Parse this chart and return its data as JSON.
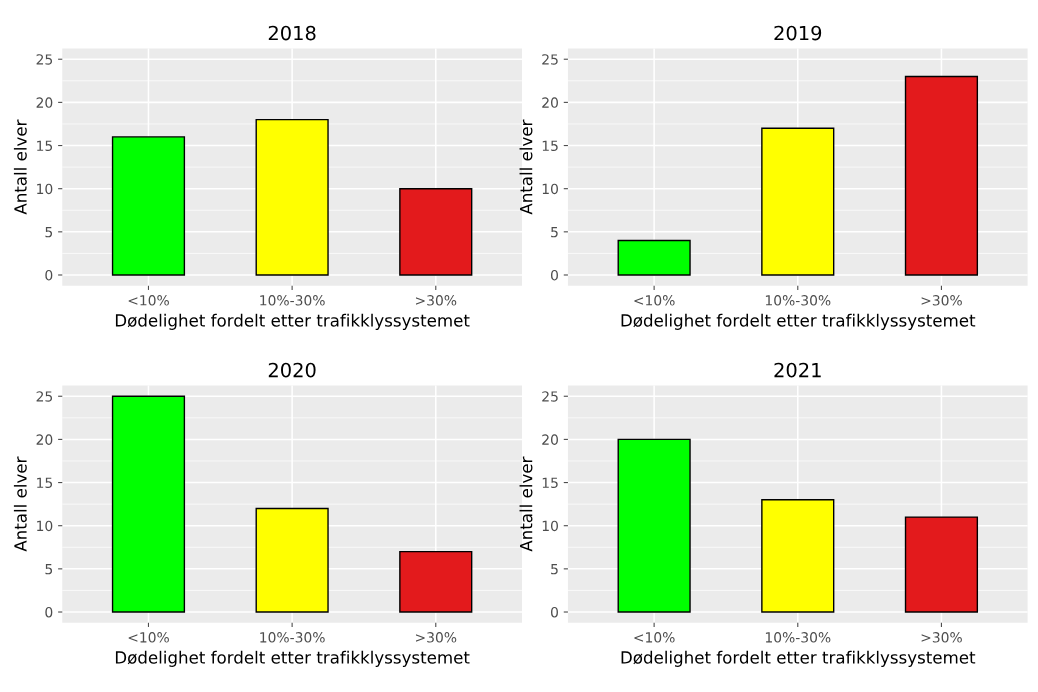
{
  "chart_data": [
    {
      "type": "bar",
      "title": "2018",
      "xlabel": "Dødelighet fordelt etter trafikklyssystemet",
      "ylabel": "Antall elver",
      "categories": [
        "<10%",
        "10%-30%",
        ">30%"
      ],
      "values": [
        16,
        18,
        10
      ],
      "colors": [
        "#00ff00",
        "#ffff00",
        "#e31a1c"
      ],
      "ylim": [
        -1.25,
        26.25
      ],
      "yticks": [
        0,
        5,
        10,
        15,
        20,
        25
      ],
      "grid": true
    },
    {
      "type": "bar",
      "title": "2019",
      "xlabel": "Dødelighet fordelt etter trafikklyssystemet",
      "ylabel": "Antall elver",
      "categories": [
        "<10%",
        "10%-30%",
        ">30%"
      ],
      "values": [
        4,
        17,
        23
      ],
      "colors": [
        "#00ff00",
        "#ffff00",
        "#e31a1c"
      ],
      "ylim": [
        -1.25,
        26.25
      ],
      "yticks": [
        0,
        5,
        10,
        15,
        20,
        25
      ],
      "grid": true
    },
    {
      "type": "bar",
      "title": "2020",
      "xlabel": "Dødelighet fordelt etter trafikklyssystemet",
      "ylabel": "Antall elver",
      "categories": [
        "<10%",
        "10%-30%",
        ">30%"
      ],
      "values": [
        25,
        12,
        7
      ],
      "colors": [
        "#00ff00",
        "#ffff00",
        "#e31a1c"
      ],
      "ylim": [
        -1.25,
        26.25
      ],
      "yticks": [
        0,
        5,
        10,
        15,
        20,
        25
      ],
      "grid": true
    },
    {
      "type": "bar",
      "title": "2021",
      "xlabel": "Dødelighet fordelt etter trafikklyssystemet",
      "ylabel": "Antall elver",
      "categories": [
        "<10%",
        "10%-30%",
        ">30%"
      ],
      "values": [
        20,
        13,
        11
      ],
      "colors": [
        "#00ff00",
        "#ffff00",
        "#e31a1c"
      ],
      "ylim": [
        -1.25,
        26.25
      ],
      "yticks": [
        0,
        5,
        10,
        15,
        20,
        25
      ],
      "grid": true
    }
  ]
}
